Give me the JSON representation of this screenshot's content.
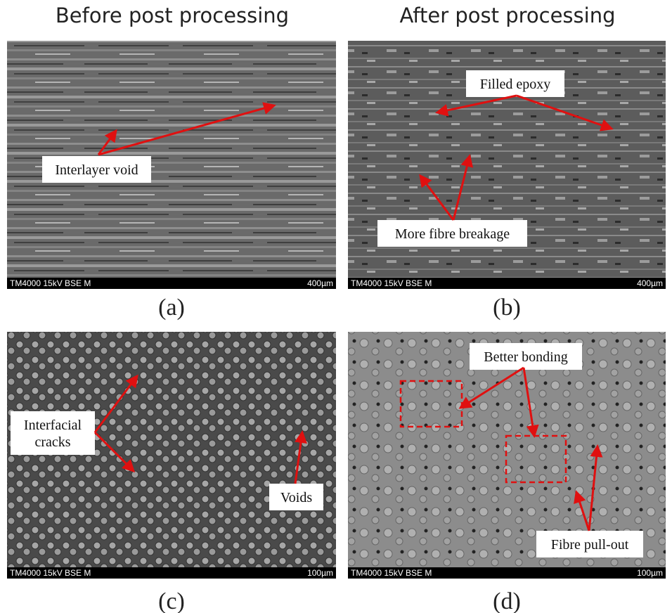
{
  "columns": [
    "Before post processing",
    "After post processing"
  ],
  "panels": [
    {
      "caption": "(a)",
      "instrument": "TM4000 15kV BSE M",
      "scale": "400µm",
      "annotations": [
        [
          "Interlayer void"
        ]
      ]
    },
    {
      "caption": "(b)",
      "instrument": "TM4000 15kV BSE M",
      "scale": "400µm",
      "annotations": [
        [
          "Filled epoxy"
        ],
        [
          "More fibre breakage"
        ]
      ]
    },
    {
      "caption": "(c)",
      "instrument": "TM4000 15kV BSE M",
      "scale": "100µm",
      "annotations": [
        [
          "Interfacial",
          "cracks"
        ],
        [
          "Voids"
        ]
      ]
    },
    {
      "caption": "(d)",
      "instrument": "TM4000 15kV BSE M",
      "scale": "100µm",
      "annotations": [
        [
          "Better bonding"
        ],
        [
          "Fibre pull-out"
        ]
      ]
    }
  ]
}
